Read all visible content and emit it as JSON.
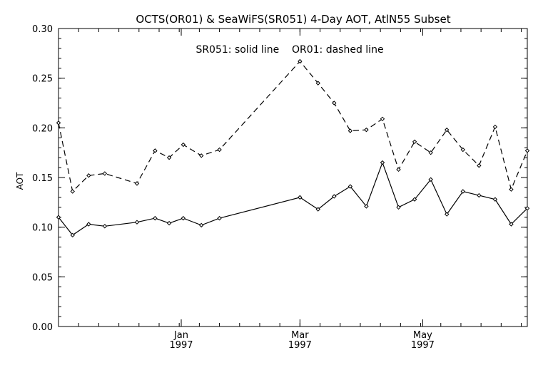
{
  "chart_data": {
    "type": "line",
    "title": "OCTS(OR01) & SeaWiFS(SR051) 4-Day AOT, AtlN55 Subset",
    "annotation": "SR051: solid line    OR01: dashed line",
    "xlabel": "",
    "ylabel": "AOT",
    "ylim": [
      0.0,
      0.3
    ],
    "y_ticks": [
      "0.00",
      "0.05",
      "0.10",
      "0.15",
      "0.20",
      "0.25",
      "0.30"
    ],
    "x_unit": "day index from Nov 1 1996",
    "xlim": [
      0,
      233
    ],
    "x_tick_labels": [
      {
        "x": 61,
        "month": "Jan",
        "year": "1997"
      },
      {
        "x": 120,
        "month": "Mar",
        "year": "1997"
      },
      {
        "x": 181,
        "month": "May",
        "year": "1997"
      }
    ],
    "grid": false,
    "series": [
      {
        "name": "SR051",
        "style": "solid",
        "color": "#000000",
        "x": [
          0,
          7,
          15,
          23,
          39,
          48,
          55,
          62,
          71,
          80,
          120,
          129,
          137,
          145,
          153,
          161,
          169,
          177,
          185,
          193,
          201,
          209,
          217,
          225,
          233
        ],
        "y": [
          0.11,
          0.092,
          0.103,
          0.101,
          0.105,
          0.109,
          0.104,
          0.109,
          0.102,
          0.109,
          0.13,
          0.118,
          0.131,
          0.141,
          0.121,
          0.165,
          0.12,
          0.128,
          0.148,
          0.113,
          0.136,
          0.132,
          0.128,
          0.103,
          0.119
        ]
      },
      {
        "name": "OR01",
        "style": "dashed",
        "color": "#000000",
        "x": [
          0,
          7,
          15,
          23,
          39,
          48,
          55,
          62,
          71,
          80,
          120,
          129,
          137,
          145,
          153,
          161,
          169,
          177,
          185,
          193,
          201,
          209,
          217,
          225,
          233
        ],
        "y": [
          0.205,
          0.136,
          0.152,
          0.154,
          0.144,
          0.177,
          0.17,
          0.183,
          0.172,
          0.178,
          0.267,
          0.245,
          0.225,
          0.197,
          0.198,
          0.209,
          0.158,
          0.186,
          0.175,
          0.198,
          0.178,
          0.162,
          0.201,
          0.138,
          0.177
        ]
      }
    ]
  }
}
